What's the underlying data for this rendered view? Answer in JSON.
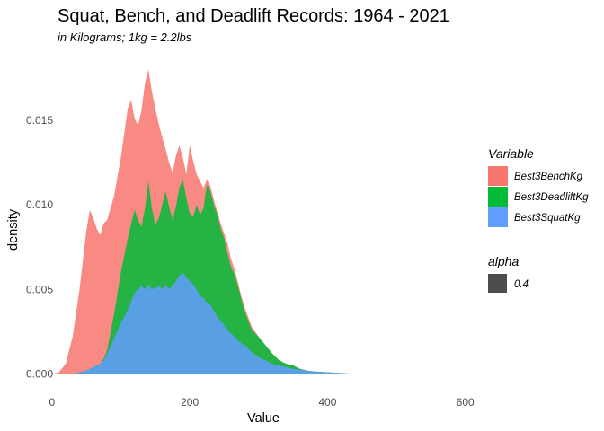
{
  "chart_data": {
    "type": "area",
    "stacked": true,
    "title": "Squat, Bench, and Deadlift Records: 1964 - 2021",
    "subtitle": "in Kilograms; 1kg = 2.2lbs",
    "xlabel": "Value",
    "ylabel": "density",
    "xlim": [
      -5,
      620
    ],
    "ylim": [
      -0.0004,
      0.0185
    ],
    "x_ticks": [
      0,
      200,
      400,
      600
    ],
    "x_tick_labels": [
      "0",
      "200",
      "400",
      "600"
    ],
    "y_ticks": [
      0.0,
      0.005,
      0.01,
      0.015
    ],
    "y_tick_labels": [
      "0.000",
      "0.005",
      "0.010",
      "0.015"
    ],
    "grid": false,
    "legend_position": "right",
    "legend": {
      "title": "Variable",
      "entries": [
        "Best3BenchKg",
        "Best3DeadliftKg",
        "Best3SquatKg"
      ],
      "alpha_title": "alpha",
      "alpha_value": "0.4"
    },
    "colors": {
      "Best3BenchKg": "#f8766d",
      "Best3DeadliftKg": "#00ba38",
      "Best3SquatKg": "#619cff",
      "alpha_swatch": "#4d4d4d"
    },
    "fill_alpha": 0.85,
    "x": [
      0,
      10,
      20,
      30,
      40,
      50,
      55,
      60,
      65,
      70,
      75,
      80,
      90,
      100,
      110,
      115,
      120,
      125,
      130,
      135,
      140,
      145,
      150,
      155,
      160,
      165,
      170,
      175,
      180,
      185,
      190,
      195,
      200,
      205,
      210,
      215,
      220,
      225,
      230,
      235,
      240,
      245,
      250,
      255,
      260,
      265,
      270,
      275,
      280,
      290,
      300,
      310,
      320,
      330,
      340,
      350,
      360,
      370,
      380,
      400,
      420,
      450,
      500,
      550
    ],
    "series": [
      {
        "name": "Best3SquatKg",
        "cumulative": [
          0.0,
          0.0,
          0.0,
          0.0,
          0.0001,
          0.0002,
          0.0003,
          0.0004,
          0.0005,
          0.0006,
          0.0008,
          0.0012,
          0.0021,
          0.003,
          0.0038,
          0.0043,
          0.0048,
          0.005,
          0.0052,
          0.005,
          0.0053,
          0.005,
          0.0051,
          0.0052,
          0.005,
          0.0053,
          0.005,
          0.0052,
          0.0055,
          0.0058,
          0.006,
          0.0057,
          0.0055,
          0.0053,
          0.005,
          0.0046,
          0.0045,
          0.0042,
          0.0041,
          0.0037,
          0.0034,
          0.0031,
          0.0029,
          0.0026,
          0.0024,
          0.0022,
          0.002,
          0.0018,
          0.0017,
          0.0013,
          0.001,
          0.0008,
          0.0006,
          0.0005,
          0.0004,
          0.0003,
          0.00025,
          0.0002,
          0.00015,
          0.0001,
          5e-05,
          0.0,
          0.0,
          0.0
        ]
      },
      {
        "name": "Best3DeadliftKg",
        "cumulative": [
          0.0,
          0.0,
          0.0,
          0.0,
          0.0001,
          0.0002,
          0.0003,
          0.0004,
          0.0005,
          0.0006,
          0.0009,
          0.0014,
          0.0035,
          0.006,
          0.008,
          0.0089,
          0.0097,
          0.0091,
          0.0087,
          0.0098,
          0.0114,
          0.0098,
          0.0088,
          0.0092,
          0.01,
          0.0108,
          0.0099,
          0.0091,
          0.0099,
          0.011,
          0.0115,
          0.0104,
          0.0095,
          0.0093,
          0.01,
          0.0094,
          0.0098,
          0.0112,
          0.0108,
          0.01,
          0.0094,
          0.0086,
          0.008,
          0.0071,
          0.0063,
          0.0059,
          0.0052,
          0.0044,
          0.0037,
          0.0026,
          0.0022,
          0.0017,
          0.0012,
          0.0008,
          0.0006,
          0.0005,
          0.0003,
          0.0002,
          0.00015,
          0.0001,
          5e-05,
          0.0,
          0.0,
          0.0
        ]
      },
      {
        "name": "Best3BenchKg",
        "cumulative": [
          0.0,
          0.0001,
          0.0006,
          0.0022,
          0.005,
          0.0085,
          0.0097,
          0.0092,
          0.0086,
          0.0082,
          0.0089,
          0.0091,
          0.0105,
          0.0128,
          0.0157,
          0.0162,
          0.0151,
          0.0147,
          0.0156,
          0.0172,
          0.018,
          0.0167,
          0.0157,
          0.0148,
          0.014,
          0.0133,
          0.0125,
          0.0119,
          0.0129,
          0.0135,
          0.0128,
          0.0118,
          0.0135,
          0.0126,
          0.0118,
          0.0114,
          0.011,
          0.0115,
          0.0111,
          0.0103,
          0.0096,
          0.0089,
          0.0083,
          0.0077,
          0.0068,
          0.0062,
          0.0054,
          0.0046,
          0.0039,
          0.0028,
          0.0022,
          0.0017,
          0.0012,
          0.0008,
          0.0006,
          0.0005,
          0.0003,
          0.0002,
          0.00015,
          0.0001,
          5e-05,
          0.0,
          0.0,
          0.0
        ]
      }
    ]
  }
}
